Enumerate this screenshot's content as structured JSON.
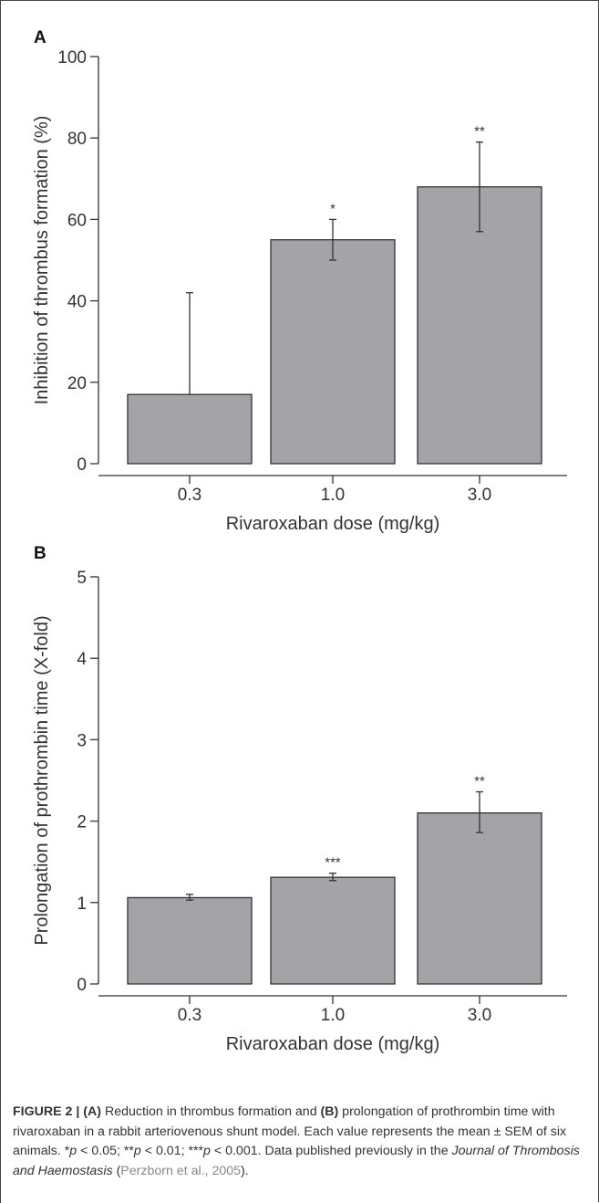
{
  "chart_data": [
    {
      "panel": "A",
      "type": "bar",
      "categories": [
        "0.3",
        "1.0",
        "3.0"
      ],
      "values": [
        17,
        55,
        68
      ],
      "error_upper": [
        42,
        60,
        79
      ],
      "error_lower": [
        17,
        50,
        57
      ],
      "significance": [
        "",
        "*",
        "**"
      ],
      "xlabel": "Rivaroxaban dose (mg/kg)",
      "ylabel": "Inhibition of thrombus formation (%)",
      "ylim": [
        0,
        100
      ],
      "yticks": [
        "0",
        "20",
        "40",
        "60",
        "80",
        "100"
      ],
      "grid": false
    },
    {
      "panel": "B",
      "type": "bar",
      "categories": [
        "0.3",
        "1.0",
        "3.0"
      ],
      "values": [
        1.06,
        1.31,
        2.1
      ],
      "error_upper": [
        1.1,
        1.36,
        2.36
      ],
      "error_lower": [
        1.03,
        1.27,
        1.86
      ],
      "significance": [
        "",
        "***",
        "**"
      ],
      "xlabel": "Rivaroxaban dose (mg/kg)",
      "ylabel": "Prolongation of prothrombin time (X-fold)",
      "ylim": [
        0,
        5
      ],
      "yticks": [
        "0",
        "1",
        "2",
        "3",
        "4",
        "5"
      ],
      "grid": false
    }
  ],
  "caption": {
    "figure_label": "FIGURE 2 |",
    "a_label": "(A)",
    "text1": " Reduction in thrombus formation and ",
    "b_label": "(B)",
    "text2": " prolongation of prothrombin time with rivaroxaban in a rabbit arteriovenous shunt model. Each value represents the mean ± SEM of six animals. *",
    "p1": "p",
    "text3": " < 0.05; **",
    "p2": "p",
    "text4": " < 0.01; ***",
    "p3": "p",
    "text5": " < 0.001. Data published previously in the ",
    "journal": "Journal of Thrombosis and Haemostasis",
    "text6": " (",
    "citation": "Perzborn et al., 2005",
    "text7": ")."
  }
}
